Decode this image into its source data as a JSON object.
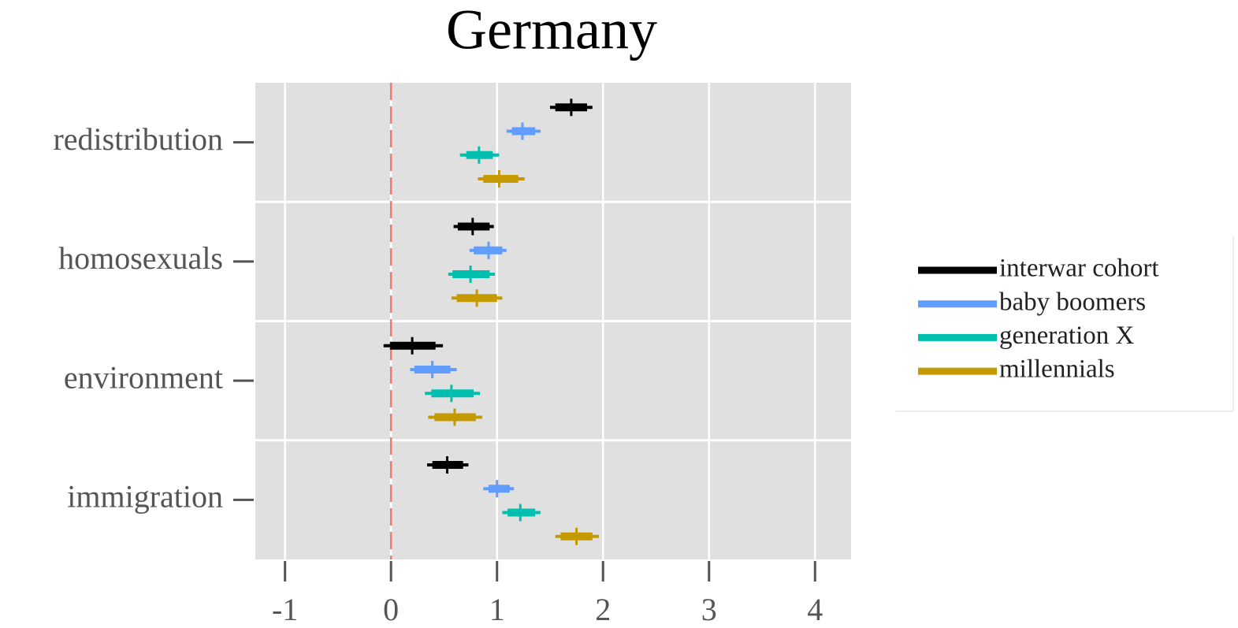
{
  "chart_data": {
    "type": "interval",
    "title": "Germany",
    "categories": [
      "redistribution",
      "homosexuals",
      "environment",
      "immigration"
    ],
    "series": [
      {
        "name": "interwar cohort",
        "color": "#000000",
        "values": [
          1.7,
          0.77,
          0.2,
          0.53
        ],
        "lower": [
          1.5,
          0.59,
          -0.07,
          0.34
        ],
        "upper": [
          1.9,
          0.97,
          0.49,
          0.73
        ],
        "lower_inner": [
          1.55,
          0.63,
          -0.01,
          0.39
        ],
        "upper_inner": [
          1.85,
          0.93,
          0.42,
          0.68
        ]
      },
      {
        "name": "baby boomers",
        "color": "#619cff",
        "values": [
          1.24,
          0.92,
          0.39,
          1.0
        ],
        "lower": [
          1.09,
          0.74,
          0.18,
          0.87
        ],
        "upper": [
          1.41,
          1.09,
          0.62,
          1.16
        ],
        "lower_inner": [
          1.14,
          0.78,
          0.22,
          0.92
        ],
        "upper_inner": [
          1.36,
          1.05,
          0.56,
          1.12
        ]
      },
      {
        "name": "generation X",
        "color": "#00bfae",
        "values": [
          0.83,
          0.75,
          0.57,
          1.22
        ],
        "lower": [
          0.65,
          0.54,
          0.32,
          1.05
        ],
        "upper": [
          1.02,
          0.98,
          0.84,
          1.41
        ],
        "lower_inner": [
          0.71,
          0.58,
          0.38,
          1.1
        ],
        "upper_inner": [
          0.96,
          0.93,
          0.78,
          1.36
        ]
      },
      {
        "name": "millennials",
        "color": "#c49a00",
        "values": [
          1.02,
          0.81,
          0.6,
          1.75
        ],
        "lower": [
          0.82,
          0.57,
          0.35,
          1.55
        ],
        "upper": [
          1.26,
          1.05,
          0.86,
          1.96
        ],
        "lower_inner": [
          0.87,
          0.62,
          0.41,
          1.6
        ],
        "upper_inner": [
          1.2,
          1.0,
          0.8,
          1.9
        ]
      }
    ],
    "xlim": [
      -1.28,
      4.34
    ],
    "xticks": [
      -1,
      0,
      1,
      2,
      3,
      4
    ],
    "reference_line": 0,
    "reference_color": "#f8766d",
    "grid": true,
    "legend": "right"
  }
}
